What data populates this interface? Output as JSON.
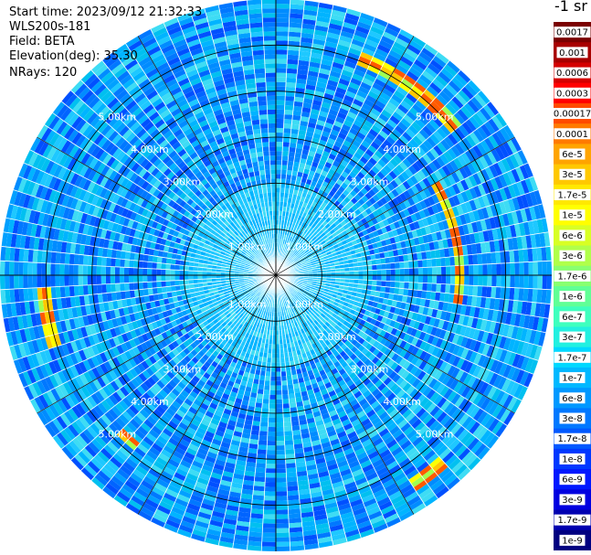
{
  "header": {
    "start_time": "Start time: 2023/09/12 21:32:33",
    "device": "WLS200s-181",
    "field": "Field: BETA",
    "elevation": "Elevation(deg): 35.30",
    "nrays": "NRays: 120"
  },
  "colorbar": {
    "title": "-1 sr",
    "labels": [
      "0.0017",
      "0.001",
      "0.0006",
      "0.0003",
      "0.00017",
      "0.0001",
      "6e-5",
      "3e-5",
      "1.7e-5",
      "1e-5",
      "6e-6",
      "3e-6",
      "1.7e-6",
      "1e-6",
      "6e-7",
      "3e-7",
      "1.7e-7",
      "1e-7",
      "6e-8",
      "3e-8",
      "1.7e-8",
      "1e-8",
      "6e-9",
      "3e-9",
      "1.7e-9",
      "1e-9"
    ],
    "colors": [
      "#7a0000",
      "#a80000",
      "#d40000",
      "#ff0000",
      "#ff4a00",
      "#ff7a00",
      "#ffa400",
      "#ffc800",
      "#ffe800",
      "#ffff00",
      "#d8ff24",
      "#b0ff4a",
      "#88ff70",
      "#60ff96",
      "#3effbe",
      "#22f0e0",
      "#00d8ff",
      "#00b8ff",
      "#0098ff",
      "#0078ff",
      "#0058ff",
      "#0038ff",
      "#0018ff",
      "#0000e0",
      "#0000b0",
      "#000080"
    ]
  },
  "chart_data": {
    "type": "heatmap",
    "projection": "polar-ppi",
    "n_rays": 120,
    "max_range_km": 6.0,
    "range_rings_km": [
      1,
      2,
      3,
      4,
      5
    ],
    "range_labels": [
      "1.00km",
      "2.00km",
      "3.00km",
      "4.00km",
      "5.00km"
    ],
    "background_level": "1e-8 to 1e-7",
    "high_backscatter_regions": [
      {
        "location": "north",
        "range_km": [
          4.9,
          5.2
        ],
        "azimuth_deg": [
          20,
          50
        ],
        "peak": "3e-5"
      },
      {
        "location": "east",
        "range_km": [
          3.9,
          4.1
        ],
        "azimuth_deg": [
          60,
          100
        ],
        "peak": "3e-5"
      },
      {
        "location": "west",
        "range_km": [
          4.95,
          5.2
        ],
        "azimuth_deg": [
          252,
          268
        ],
        "peak": "3e-5"
      },
      {
        "location": "south-east",
        "range_km": [
          5.3,
          5.6
        ],
        "azimuth_deg": [
          138,
          146
        ],
        "peak": "1.7e-5"
      },
      {
        "location": "south-west",
        "range_km": [
          4.7,
          4.9
        ],
        "azimuth_deg": [
          218,
          224
        ],
        "peak": "1.7e-5"
      }
    ]
  }
}
